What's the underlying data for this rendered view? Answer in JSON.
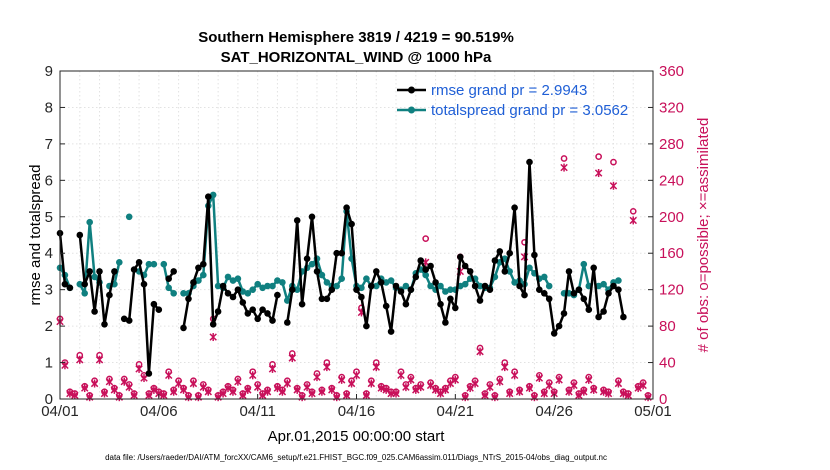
{
  "chart_data": {
    "type": "line",
    "title": "Southern Hemisphere 3819 / 4219 = 90.519%",
    "subtitle": "SAT_HORIZONTAL_WIND @ 1000 hPa",
    "xlabel": "Apr.01,2015 00:00:00 start",
    "ylabel_left": "rmse and totalspread",
    "ylabel_right": "# of obs: o=possible; ×=assimilated",
    "footnote": "data file: /Users/raeder/DAI/ATM_forcXX/CAM6_setup/f.e21.FHIST_BGC.f09_025.CAM6assim.011/Diags_NTrS_2015-04/obs_diag_output.nc",
    "xlim": [
      0,
      30
    ],
    "ylim_left": [
      0,
      9
    ],
    "ylim_right": [
      0,
      360
    ],
    "x_tick_values": [
      0,
      5,
      10,
      15,
      20,
      25,
      30
    ],
    "x_tick_labels": [
      "04/01",
      "04/06",
      "04/11",
      "04/16",
      "04/21",
      "04/26",
      "05/01"
    ],
    "y_left_ticks": [
      "0",
      "1",
      "2",
      "3",
      "4",
      "5",
      "6",
      "7",
      "8",
      "9"
    ],
    "y_right_ticks": [
      "0",
      "40",
      "80",
      "120",
      "160",
      "200",
      "240",
      "280",
      "320",
      "360"
    ],
    "legend": [
      {
        "label": "rmse grand pr = 2.9943",
        "color": "#000000"
      },
      {
        "label": "totalspread grand pr = 3.0562",
        "color": "#108080"
      }
    ],
    "colors": {
      "rmse": "#000000",
      "spread": "#108080",
      "obs": "#c8105a",
      "legend_text": "#1f5fd6",
      "grid": "#e2e2e2"
    },
    "series": [
      {
        "name": "rmse",
        "values": [
          4.55,
          3.15,
          3.05,
          null,
          4.5,
          3.15,
          3.5,
          2.4,
          3.5,
          2.05,
          2.85,
          3.5,
          null,
          2.2,
          2.15,
          3.55,
          3.75,
          3.15,
          0.7,
          2.6,
          2.45,
          null,
          3.3,
          3.5,
          null,
          1.95,
          2.75,
          3.2,
          3.6,
          3.7,
          5.55,
          2.05,
          2.4,
          3.1,
          2.9,
          2.8,
          3.0,
          2.65,
          2.35,
          2.45,
          2.2,
          2.45,
          2.35,
          2.15,
          2.85,
          null,
          2.1,
          3.0,
          4.9,
          2.6,
          3.85,
          5.0,
          3.5,
          2.75,
          2.75,
          3.0,
          4.0,
          4.0,
          5.25,
          4.8,
          3.0,
          2.8,
          2.0,
          3.1,
          3.5,
          3.2,
          2.55,
          1.85,
          3.1,
          2.95,
          2.6,
          3.0,
          3.35,
          3.8,
          3.55,
          3.65,
          3.2,
          2.6,
          2.1,
          2.75,
          2.5,
          3.9,
          3.65,
          3.5,
          3.1,
          2.7,
          3.1,
          3.0,
          3.8,
          4.05,
          3.5,
          4.0,
          5.25,
          3.1,
          2.85,
          6.5,
          3.95,
          3.0,
          2.9,
          2.75,
          1.8,
          2.0,
          2.35,
          3.5,
          2.9,
          3.0,
          2.75,
          2.45,
          3.6,
          2.25,
          2.4,
          2.9,
          3.1,
          3.0,
          2.25
        ],
        "_note": "x = index * 0.25 days (6-hourly)"
      },
      {
        "name": "totalspread",
        "values": [
          3.6,
          3.4,
          3.05,
          null,
          3.15,
          2.9,
          4.85,
          3.35,
          3.2,
          null,
          3.1,
          3.15,
          3.75,
          null,
          5.0,
          null,
          3.5,
          3.4,
          3.7,
          3.7,
          null,
          3.7,
          3.05,
          2.9,
          null,
          2.9,
          2.9,
          3.1,
          3.25,
          3.4,
          5.3,
          5.6,
          3.1,
          3.05,
          3.35,
          3.25,
          3.3,
          2.95,
          2.9,
          3.0,
          3.15,
          3.05,
          3.1,
          3.1,
          3.25,
          3.2,
          2.7,
          3.1,
          3.0,
          3.5,
          3.6,
          3.7,
          3.85,
          3.4,
          3.2,
          3.1,
          3.1,
          3.3,
          5.15,
          3.85,
          3.1,
          3.05,
          3.3,
          3.1,
          3.1,
          3.3,
          3.2,
          3.25,
          3.05,
          3.0,
          3.1,
          3.0,
          3.45,
          3.55,
          3.4,
          3.1,
          3.0,
          3.1,
          2.95,
          3.0,
          3.0,
          3.1,
          3.15,
          3.3,
          3.3,
          3.1,
          3.05,
          3.05,
          3.35,
          3.75,
          3.85,
          3.5,
          3.2,
          3.25,
          3.15,
          3.6,
          3.45,
          3.3,
          3.35,
          3.1,
          null,
          null,
          2.9,
          2.9,
          2.85,
          3.0,
          3.7,
          3.1,
          null,
          3.1,
          3.15,
          3.0,
          3.2,
          3.25
        ]
      },
      {
        "name": "obs possible (o, right axis)",
        "x": [
          0.0,
          0.25,
          0.5,
          0.75,
          1.0,
          1.25,
          1.5,
          1.75,
          2.0,
          2.25,
          2.5,
          2.75,
          3.0,
          3.25,
          3.5,
          3.75,
          4.0,
          4.25,
          4.5,
          4.75,
          5.0,
          5.25,
          5.5,
          5.75,
          6.0,
          6.25,
          6.5,
          6.75,
          7.0,
          7.25,
          7.5,
          7.75,
          8.0,
          8.25,
          8.5,
          8.75,
          9.0,
          9.25,
          9.5,
          9.75,
          10.0,
          10.25,
          10.5,
          10.75,
          11.0,
          11.25,
          11.5,
          11.75,
          12.0,
          12.25,
          12.5,
          12.75,
          13.0,
          13.25,
          13.5,
          13.75,
          14.0,
          14.25,
          14.5,
          14.75,
          15.0,
          15.25,
          15.5,
          15.75,
          16.0,
          16.25,
          16.5,
          16.75,
          17.0,
          17.25,
          17.5,
          17.75,
          18.0,
          18.25,
          18.5,
          18.75,
          19.0,
          19.25,
          19.5,
          19.75,
          20.0,
          20.25,
          20.5,
          20.75,
          21.0,
          21.25,
          21.5,
          21.75,
          22.0,
          22.25,
          22.5,
          22.75,
          23.0,
          23.25,
          23.5,
          23.75,
          24.0,
          24.25,
          24.5,
          24.75,
          25.0,
          25.25,
          25.5,
          25.75,
          26.0,
          26.25,
          26.5,
          26.75,
          27.0,
          27.25,
          27.5,
          27.75,
          28.0,
          28.25,
          28.5,
          28.75,
          29.0,
          29.25,
          29.5,
          29.75
        ],
        "values": [
          88,
          40,
          8,
          6,
          48,
          14,
          4,
          20,
          48,
          8,
          22,
          12,
          4,
          22,
          16,
          6,
          38,
          26,
          6,
          12,
          8,
          6,
          30,
          10,
          20,
          12,
          4,
          20,
          4,
          16,
          10,
          88,
          4,
          8,
          14,
          10,
          22,
          6,
          12,
          30,
          16,
          6,
          10,
          38,
          14,
          10,
          20,
          50,
          12,
          4,
          16,
          8,
          28,
          10,
          40,
          12,
          4,
          24,
          6,
          20,
          30,
          100,
          6,
          20,
          40,
          14,
          12,
          8,
          8,
          30,
          16,
          24,
          12,
          16,
          176,
          18,
          12,
          8,
          12,
          20,
          24,
          156,
          4,
          14,
          20,
          56,
          6,
          16,
          4,
          22,
          40,
          8,
          30,
          10,
          172,
          14,
          4,
          26,
          8,
          18,
          8,
          24,
          264,
          10,
          18,
          6,
          10,
          24,
          12,
          266,
          10,
          8,
          260,
          20,
          8,
          6,
          206,
          14,
          18,
          4
        ]
      },
      {
        "name": "obs assimilated (×, right axis)",
        "x": [
          0.0,
          0.25,
          0.5,
          0.75,
          1.0,
          1.25,
          1.5,
          1.75,
          2.0,
          2.25,
          2.5,
          2.75,
          3.0,
          3.25,
          3.5,
          3.75,
          4.0,
          4.25,
          4.5,
          4.75,
          5.0,
          5.25,
          5.5,
          5.75,
          6.0,
          6.25,
          6.5,
          6.75,
          7.0,
          7.25,
          7.5,
          7.75,
          8.0,
          8.25,
          8.5,
          8.75,
          9.0,
          9.25,
          9.5,
          9.75,
          10.0,
          10.25,
          10.5,
          10.75,
          11.0,
          11.25,
          11.5,
          11.75,
          12.0,
          12.25,
          12.5,
          12.75,
          13.0,
          13.25,
          13.5,
          13.75,
          14.0,
          14.25,
          14.5,
          14.75,
          15.0,
          15.25,
          15.5,
          15.75,
          16.0,
          16.25,
          16.5,
          16.75,
          17.0,
          17.25,
          17.5,
          17.75,
          18.0,
          18.25,
          18.5,
          18.75,
          19.0,
          19.25,
          19.5,
          19.75,
          20.0,
          20.25,
          20.5,
          20.75,
          21.0,
          21.25,
          21.5,
          21.75,
          22.0,
          22.25,
          22.5,
          22.75,
          23.0,
          23.25,
          23.5,
          23.75,
          24.0,
          24.25,
          24.5,
          24.75,
          25.0,
          25.25,
          25.5,
          25.75,
          26.0,
          26.25,
          26.5,
          26.75,
          27.0,
          27.25,
          27.5,
          27.75,
          28.0,
          28.25,
          28.5,
          28.75,
          29.0,
          29.25,
          29.5,
          29.75
        ],
        "values": [
          85,
          37,
          6,
          4,
          43,
          12,
          2,
          17,
          43,
          6,
          19,
          10,
          2,
          19,
          13,
          4,
          33,
          23,
          4,
          10,
          6,
          4,
          26,
          8,
          17,
          10,
          2,
          17,
          2,
          13,
          8,
          68,
          2,
          6,
          12,
          8,
          19,
          4,
          10,
          26,
          13,
          4,
          8,
          33,
          12,
          8,
          17,
          45,
          10,
          2,
          13,
          6,
          24,
          8,
          35,
          10,
          2,
          21,
          4,
          17,
          26,
          95,
          4,
          17,
          35,
          12,
          10,
          6,
          6,
          26,
          13,
          21,
          10,
          13,
          150,
          15,
          10,
          6,
          10,
          17,
          21,
          140,
          2,
          12,
          17,
          52,
          4,
          13,
          2,
          19,
          35,
          6,
          26,
          8,
          156,
          12,
          2,
          23,
          6,
          15,
          6,
          21,
          254,
          8,
          15,
          4,
          8,
          21,
          10,
          248,
          8,
          6,
          234,
          17,
          6,
          4,
          196,
          12,
          15,
          2
        ]
      }
    ]
  }
}
